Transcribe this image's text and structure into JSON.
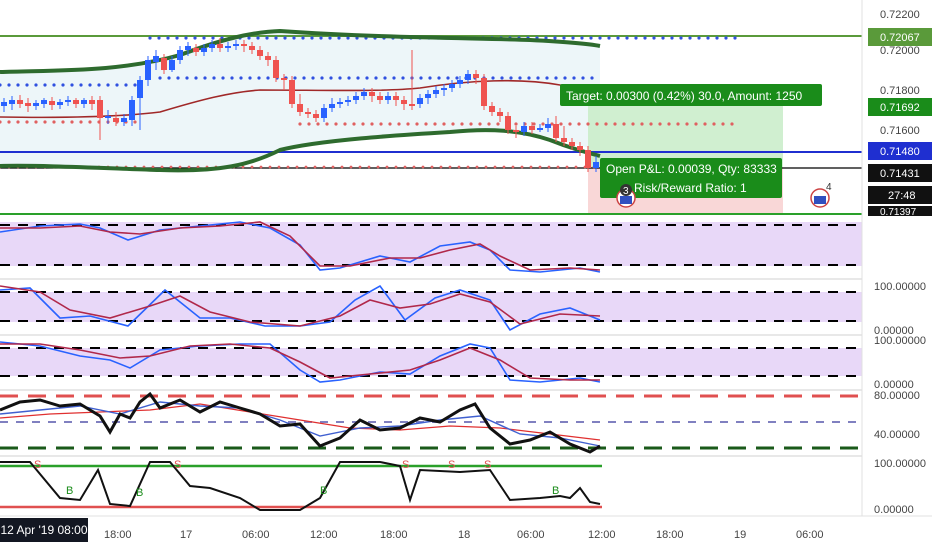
{
  "colors": {
    "up": "#2962ff",
    "down": "#ef5350",
    "ma": "#a02828",
    "band": "#2e6b2e",
    "hline_top": "#5a9a3a",
    "hline_blue": "#1f2fd0",
    "dots_up": "#3050e0",
    "dots_down": "#e06060",
    "purple_fill": "#e8d8f8",
    "osc_blue": "#2962ff",
    "osc_red": "#b0284a",
    "target_box": "#1a8c1a",
    "pnl_box": "#1a8c1a",
    "black": "#000000"
  },
  "price_axis": {
    "labels": [
      "0.72200",
      "0.72067",
      "0.72000",
      "0.71800",
      "0.71692",
      "0.71600",
      "0.71480",
      "0.71431",
      "27:48"
    ],
    "badges": {
      "top_line": "0.72067",
      "target": "0.71692",
      "blue_line": "0.71480",
      "current": "0.71431",
      "countdown": "27:48",
      "partial": "0.71397"
    }
  },
  "time_axis": {
    "badge": "12 Apr '19  08:00",
    "labels": [
      "18:00",
      "17",
      "06:00",
      "12:00",
      "18:00",
      "18",
      "06:00",
      "12:00",
      "18:00",
      "19",
      "06:00"
    ]
  },
  "position_tool": {
    "target_label": "Target: 0.00300 (0.42%) 30.0, Amount: 1250",
    "pnl_label": "Open P&L: 0.00039, Qty: 83333",
    "rr_label": "Risk/Reward Ratio: 1",
    "event_marker_1": "3",
    "event_marker_2": "4"
  },
  "panes": {
    "stoch_2_labels": [
      "100.00000",
      "0.00000"
    ],
    "stoch_3_labels": [
      "100.00000",
      "0.00000"
    ],
    "rsi_labels": [
      "80.00000",
      "40.00000"
    ],
    "signal_labels": [
      "100.00000",
      "0.00000"
    ],
    "signal_buy": "B",
    "signal_sell": "S"
  }
}
